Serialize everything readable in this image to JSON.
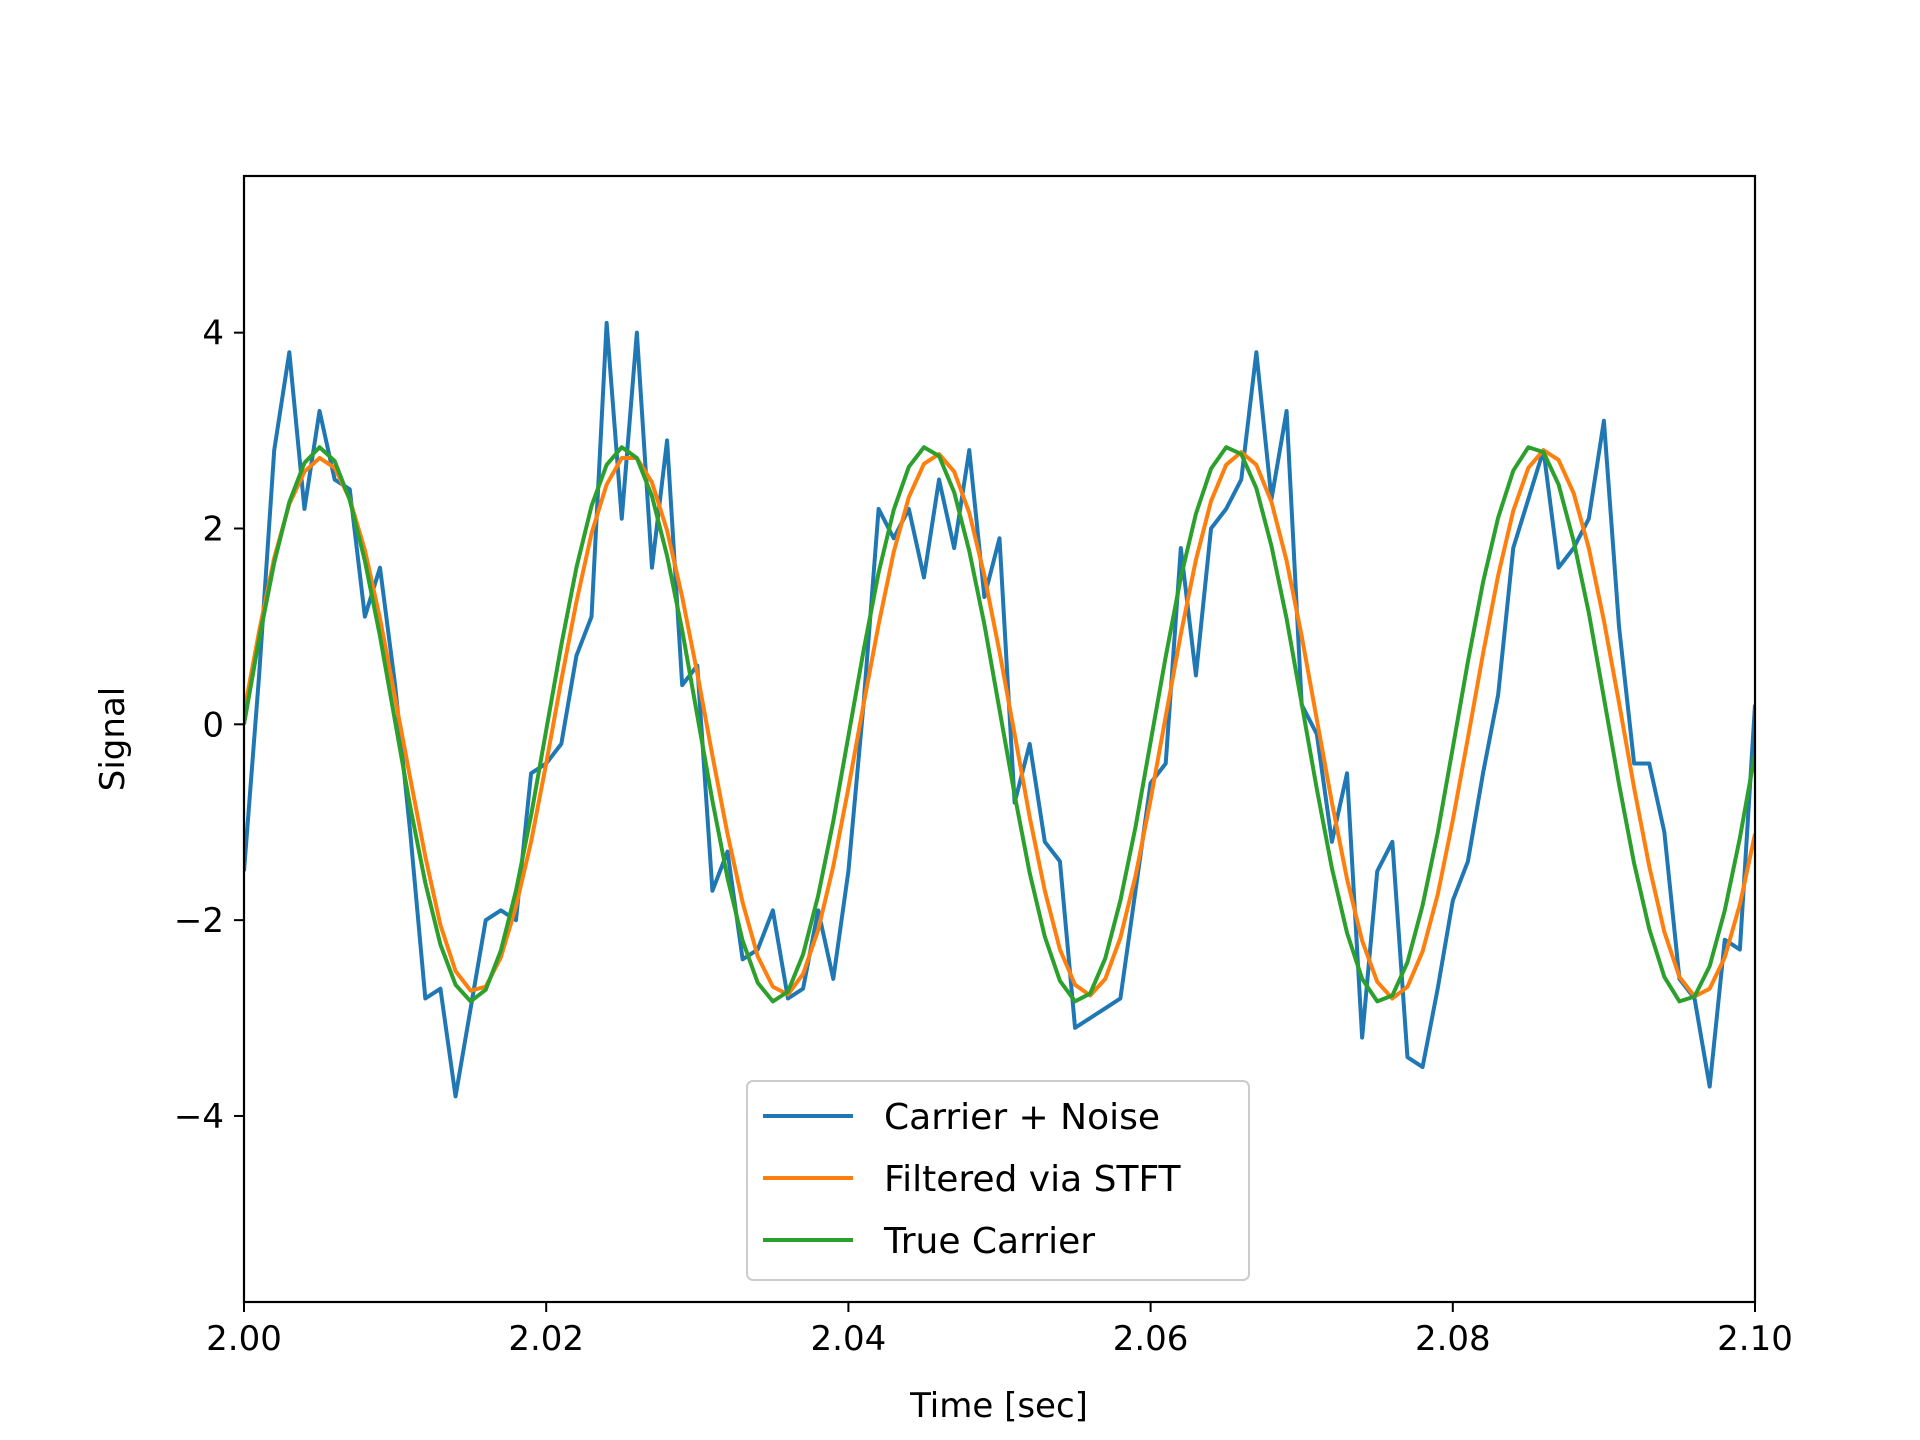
{
  "chart_data": {
    "type": "line",
    "title": "",
    "xlabel": "Time [sec]",
    "ylabel": "Signal",
    "xlim": [
      2.0,
      2.1
    ],
    "ylim": [
      -5.9,
      5.6
    ],
    "grid": false,
    "legend_position": "lower-center",
    "x_ticks": [
      2.0,
      2.02,
      2.04,
      2.06,
      2.08,
      2.1
    ],
    "x_tick_labels": [
      "2.00",
      "2.02",
      "2.04",
      "2.06",
      "2.08",
      "2.10"
    ],
    "y_ticks": [
      -4,
      -2,
      0,
      2,
      4
    ],
    "y_tick_labels": [
      "−4",
      "−2",
      "0",
      "2",
      "4"
    ],
    "series": [
      {
        "name": "Carrier + Noise",
        "color": "#1f77b4",
        "x": [
          2.0,
          2.001,
          2.002,
          2.003,
          2.004,
          2.005,
          2.006,
          2.007,
          2.008,
          2.009,
          2.01,
          2.011,
          2.012,
          2.013,
          2.014,
          2.015,
          2.016,
          2.017,
          2.018,
          2.019,
          2.02,
          2.021,
          2.022,
          2.023,
          2.024,
          2.025,
          2.026,
          2.027,
          2.028,
          2.029,
          2.03,
          2.031,
          2.032,
          2.033,
          2.034,
          2.035,
          2.036,
          2.037,
          2.038,
          2.039,
          2.04,
          2.041,
          2.042,
          2.043,
          2.044,
          2.045,
          2.046,
          2.047,
          2.048,
          2.049,
          2.05,
          2.051,
          2.052,
          2.053,
          2.054,
          2.055,
          2.056,
          2.057,
          2.058,
          2.059,
          2.06,
          2.061,
          2.062,
          2.063,
          2.064,
          2.065,
          2.066,
          2.067,
          2.068,
          2.069,
          2.07,
          2.071,
          2.072,
          2.073,
          2.074,
          2.075,
          2.076,
          2.077,
          2.078,
          2.079,
          2.08,
          2.081,
          2.082,
          2.083,
          2.084,
          2.085,
          2.086,
          2.087,
          2.088,
          2.089,
          2.09,
          2.091,
          2.092,
          2.093,
          2.094,
          2.095,
          2.096,
          2.097,
          2.098,
          2.099,
          2.1
        ],
        "y": [
          -1.5,
          0.5,
          2.8,
          3.8,
          2.2,
          3.2,
          2.5,
          2.4,
          1.1,
          1.6,
          0.4,
          -1.1,
          -2.8,
          -2.7,
          -3.8,
          -2.9,
          -2.0,
          -1.9,
          -2.0,
          -0.5,
          -0.4,
          -0.2,
          0.7,
          1.1,
          4.1,
          2.1,
          4.0,
          1.6,
          2.9,
          0.4,
          0.6,
          -1.7,
          -1.3,
          -2.4,
          -2.3,
          -1.9,
          -2.8,
          -2.7,
          -1.9,
          -2.6,
          -1.5,
          0.2,
          2.2,
          1.9,
          2.2,
          1.5,
          2.5,
          1.8,
          2.8,
          1.3,
          1.9,
          -0.8,
          -0.2,
          -1.2,
          -1.4,
          -3.1,
          -3.0,
          -2.9,
          -2.8,
          -1.7,
          -0.6,
          -0.4,
          1.8,
          0.5,
          2.0,
          2.2,
          2.5,
          3.8,
          2.3,
          3.2,
          0.2,
          -0.1,
          -1.2,
          -0.5,
          -3.2,
          -1.5,
          -1.2,
          -3.4,
          -3.5,
          -2.7,
          -1.8,
          -1.4,
          -0.5,
          0.3,
          1.8,
          2.3,
          2.8,
          1.6,
          1.8,
          2.1,
          3.1,
          1.0,
          -0.4,
          -0.4,
          -1.1,
          -2.6,
          -2.8,
          -3.7,
          -2.2,
          -2.3,
          0.2
        ]
      },
      {
        "name": "Filtered via STFT",
        "color": "#ff7f0e",
        "x": [
          2.0,
          2.001,
          2.002,
          2.003,
          2.004,
          2.005,
          2.006,
          2.007,
          2.008,
          2.009,
          2.01,
          2.011,
          2.012,
          2.013,
          2.014,
          2.015,
          2.016,
          2.017,
          2.018,
          2.019,
          2.02,
          2.021,
          2.022,
          2.023,
          2.024,
          2.025,
          2.026,
          2.027,
          2.028,
          2.029,
          2.03,
          2.031,
          2.032,
          2.033,
          2.034,
          2.035,
          2.036,
          2.037,
          2.038,
          2.039,
          2.04,
          2.041,
          2.042,
          2.043,
          2.044,
          2.045,
          2.046,
          2.047,
          2.048,
          2.049,
          2.05,
          2.051,
          2.052,
          2.053,
          2.054,
          2.055,
          2.056,
          2.057,
          2.058,
          2.059,
          2.06,
          2.061,
          2.062,
          2.063,
          2.064,
          2.065,
          2.066,
          2.067,
          2.068,
          2.069,
          2.07,
          2.071,
          2.072,
          2.073,
          2.074,
          2.075,
          2.076,
          2.077,
          2.078,
          2.079,
          2.08,
          2.081,
          2.082,
          2.083,
          2.084,
          2.085,
          2.086,
          2.087,
          2.088,
          2.089,
          2.09,
          2.091,
          2.092,
          2.093,
          2.094,
          2.095,
          2.096,
          2.097,
          2.098,
          2.099,
          2.1
        ],
        "y": [
          0.12,
          0.95,
          1.7,
          2.25,
          2.58,
          2.72,
          2.62,
          2.3,
          1.78,
          1.08,
          0.27,
          -0.55,
          -1.35,
          -2.05,
          -2.52,
          -2.72,
          -2.68,
          -2.38,
          -1.86,
          -1.2,
          -0.4,
          0.45,
          1.25,
          1.95,
          2.45,
          2.72,
          2.72,
          2.47,
          1.98,
          1.3,
          0.52,
          -0.32,
          -1.12,
          -1.82,
          -2.37,
          -2.68,
          -2.76,
          -2.55,
          -2.1,
          -1.45,
          -0.65,
          0.2,
          1.02,
          1.76,
          2.32,
          2.66,
          2.76,
          2.58,
          2.16,
          1.52,
          0.74,
          -0.1,
          -0.95,
          -1.7,
          -2.3,
          -2.66,
          -2.77,
          -2.6,
          -2.18,
          -1.55,
          -0.77,
          0.08,
          0.92,
          1.68,
          2.28,
          2.65,
          2.78,
          2.65,
          2.27,
          1.67,
          0.9,
          0.05,
          -0.8,
          -1.58,
          -2.21,
          -2.63,
          -2.8,
          -2.68,
          -2.32,
          -1.74,
          -0.98,
          -0.14,
          0.72,
          1.52,
          2.18,
          2.62,
          2.8,
          2.7,
          2.36,
          1.8,
          1.06,
          0.22,
          -0.65,
          -1.45,
          -2.12,
          -2.58,
          -2.78,
          -2.7,
          -2.38,
          -1.84,
          -1.12
        ]
      },
      {
        "name": "True Carrier",
        "color": "#2ca02c",
        "x": [
          2.0,
          2.001,
          2.002,
          2.003,
          2.004,
          2.005,
          2.006,
          2.007,
          2.008,
          2.009,
          2.01,
          2.011,
          2.012,
          2.013,
          2.014,
          2.015,
          2.016,
          2.017,
          2.018,
          2.019,
          2.02,
          2.021,
          2.022,
          2.023,
          2.024,
          2.025,
          2.026,
          2.027,
          2.028,
          2.029,
          2.03,
          2.031,
          2.032,
          2.033,
          2.034,
          2.035,
          2.036,
          2.037,
          2.038,
          2.039,
          2.04,
          2.041,
          2.042,
          2.043,
          2.044,
          2.045,
          2.046,
          2.047,
          2.048,
          2.049,
          2.05,
          2.051,
          2.052,
          2.053,
          2.054,
          2.055,
          2.056,
          2.057,
          2.058,
          2.059,
          2.06,
          2.061,
          2.062,
          2.063,
          2.064,
          2.065,
          2.066,
          2.067,
          2.068,
          2.069,
          2.07,
          2.071,
          2.072,
          2.073,
          2.074,
          2.075,
          2.076,
          2.077,
          2.078,
          2.079,
          2.08,
          2.081,
          2.082,
          2.083,
          2.084,
          2.085,
          2.086,
          2.087,
          2.088,
          2.089,
          2.09,
          2.091,
          2.092,
          2.093,
          2.094,
          2.095,
          2.096,
          2.097,
          2.098,
          2.099,
          2.1
        ],
        "y": [
          0.0,
          0.87,
          1.65,
          2.27,
          2.67,
          2.83,
          2.69,
          2.29,
          1.67,
          0.9,
          0.03,
          -0.84,
          -1.62,
          -2.25,
          -2.66,
          -2.83,
          -2.71,
          -2.31,
          -1.7,
          -0.93,
          -0.06,
          0.81,
          1.6,
          2.23,
          2.65,
          2.83,
          2.72,
          2.33,
          1.72,
          0.96,
          0.09,
          -0.78,
          -1.57,
          -2.21,
          -2.64,
          -2.83,
          -2.73,
          -2.35,
          -1.75,
          -0.99,
          -0.12,
          0.75,
          1.55,
          2.19,
          2.63,
          2.83,
          2.74,
          2.37,
          1.77,
          1.02,
          0.15,
          -0.72,
          -1.52,
          -2.17,
          -2.62,
          -2.83,
          -2.75,
          -2.39,
          -1.8,
          -1.05,
          -0.18,
          0.69,
          1.5,
          2.15,
          2.61,
          2.83,
          2.76,
          2.41,
          1.82,
          1.08,
          0.21,
          -0.66,
          -1.47,
          -2.13,
          -2.6,
          -2.83,
          -2.77,
          -2.43,
          -1.85,
          -1.11,
          -0.24,
          0.64,
          1.45,
          2.11,
          2.59,
          2.83,
          2.78,
          2.45,
          1.87,
          1.14,
          0.27,
          -0.61,
          -1.42,
          -2.09,
          -2.58,
          -2.83,
          -2.78,
          -2.47,
          -1.9,
          -1.16,
          -0.3
        ]
      }
    ]
  }
}
